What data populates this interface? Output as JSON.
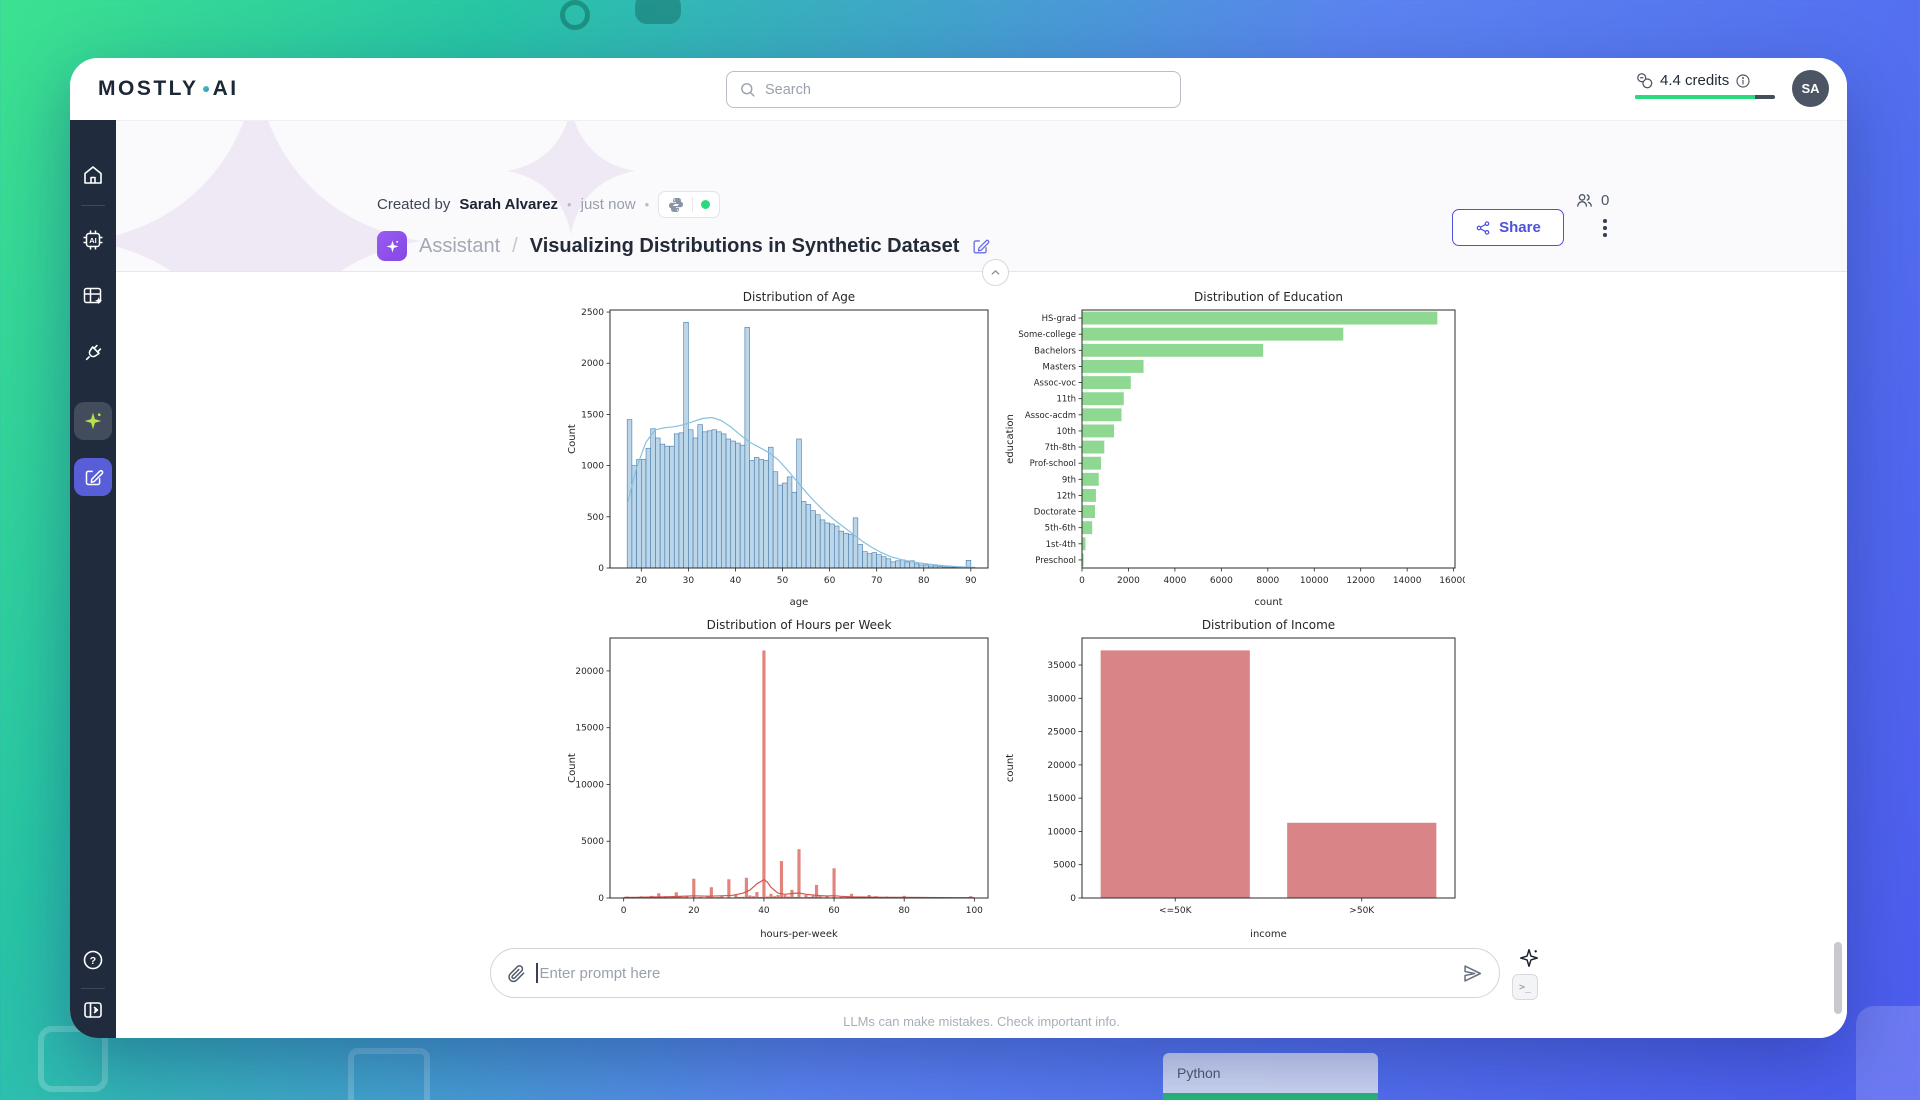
{
  "header": {
    "logo_part1": "MOSTLY",
    "logo_part2": "AI",
    "search": {
      "placeholder": "Search"
    },
    "credits": {
      "label": "4.4 credits",
      "bar_color": "#2bd97f"
    },
    "avatar": {
      "initials": "SA"
    }
  },
  "sidebar": {
    "icons": [
      "home-icon",
      "ai-models-icon",
      "datasets-icon",
      "connectors-icon",
      "assistant-sparkle-icon",
      "new-chat-icon",
      "help-icon",
      "collapse-sidebar-icon"
    ],
    "active_icon_color": "#b8e24a",
    "newchat_bg": "#585ed8"
  },
  "meta": {
    "created_by_label": "Created by",
    "author": "Sarah Alvarez",
    "dot": "•",
    "time": "just now",
    "language_badge": {
      "icon": "python-icon",
      "status_color": "#2bd97f"
    },
    "viewers_count": "0"
  },
  "title_row": {
    "breadcrumb": "Assistant",
    "separator": "/",
    "title": "Visualizing Distributions in Synthetic Dataset",
    "share_label": "Share"
  },
  "prompt": {
    "placeholder": "Enter prompt here",
    "disclaimer": "LLMs can make mistakes. Check important info."
  },
  "background": {
    "python_chip_label": "Python"
  },
  "chart_data": [
    {
      "type": "histogram",
      "title": "Distribution of Age",
      "xlabel": "age",
      "ylabel": "Count",
      "xlim": [
        13.35,
        93.65
      ],
      "ylim": [
        0,
        2520
      ],
      "xticks": [
        20,
        30,
        40,
        50,
        60,
        70,
        80,
        90
      ],
      "yticks": [
        0,
        500,
        1000,
        1500,
        2000,
        2500
      ],
      "bin_start": 17,
      "bin_width": 1,
      "counts": [
        1450,
        1000,
        1060,
        1060,
        1170,
        1360,
        1270,
        1210,
        1190,
        1190,
        1310,
        1320,
        2400,
        1350,
        1270,
        1400,
        1330,
        1340,
        1350,
        1330,
        1310,
        1260,
        1240,
        1220,
        1200,
        2350,
        1050,
        1080,
        1060,
        1050,
        1180,
        940,
        810,
        830,
        890,
        740,
        1260,
        650,
        620,
        560,
        520,
        470,
        440,
        430,
        410,
        360,
        340,
        330,
        490,
        230,
        160,
        140,
        150,
        130,
        110,
        90,
        60,
        70,
        80,
        60,
        70,
        40,
        30,
        30,
        20,
        20,
        15,
        10,
        10,
        8,
        5,
        5,
        75
      ],
      "kde": [
        [
          17,
          620
        ],
        [
          19,
          980
        ],
        [
          21,
          1230
        ],
        [
          23,
          1350
        ],
        [
          25,
          1370
        ],
        [
          27,
          1380
        ],
        [
          29,
          1400
        ],
        [
          31,
          1430
        ],
        [
          33,
          1460
        ],
        [
          35,
          1470
        ],
        [
          37,
          1440
        ],
        [
          39,
          1380
        ],
        [
          41,
          1300
        ],
        [
          43,
          1230
        ],
        [
          45,
          1180
        ],
        [
          47,
          1130
        ],
        [
          49,
          1060
        ],
        [
          51,
          960
        ],
        [
          53,
          850
        ],
        [
          55,
          740
        ],
        [
          57,
          640
        ],
        [
          59,
          550
        ],
        [
          61,
          470
        ],
        [
          63,
          400
        ],
        [
          65,
          330
        ],
        [
          67,
          260
        ],
        [
          69,
          200
        ],
        [
          71,
          150
        ],
        [
          73,
          110
        ],
        [
          75,
          85
        ],
        [
          77,
          65
        ],
        [
          79,
          50
        ],
        [
          81,
          38
        ],
        [
          83,
          28
        ],
        [
          85,
          20
        ],
        [
          87,
          14
        ],
        [
          89,
          9
        ],
        [
          91,
          5
        ]
      ],
      "bar_color": "#bad6e8",
      "bar_edge": "#4878a8",
      "line_color": "#85c1e0"
    },
    {
      "type": "barh",
      "title": "Distribution of Education",
      "xlabel": "count",
      "ylabel": "education",
      "categories": [
        "HS-grad",
        "Some-college",
        "Bachelors",
        "Masters",
        "Assoc-voc",
        "11th",
        "Assoc-acdm",
        "10th",
        "7th-8th",
        "Prof-school",
        "9th",
        "12th",
        "Doctorate",
        "5th-6th",
        "1st-4th",
        "Preschool"
      ],
      "values": [
        15300,
        11250,
        7800,
        2650,
        2100,
        1800,
        1700,
        1380,
        960,
        820,
        720,
        600,
        560,
        440,
        150,
        70
      ],
      "xlim": [
        0,
        16060
      ],
      "xticks": [
        0,
        2000,
        4000,
        6000,
        8000,
        10000,
        12000,
        14000,
        16000
      ],
      "bar_color": "#8fd892"
    },
    {
      "type": "histogram",
      "title": "Distribution of Hours per Week",
      "xlabel": "hours-per-week",
      "ylabel": "Count",
      "xlim": [
        -3.9,
        103.9
      ],
      "ylim": [
        0,
        22900
      ],
      "xticks": [
        0,
        20,
        40,
        60,
        80,
        100
      ],
      "yticks": [
        0,
        5000,
        10000,
        15000,
        20000
      ],
      "bar_width": 0.9,
      "bars": [
        [
          1,
          130
        ],
        [
          2,
          70
        ],
        [
          3,
          60
        ],
        [
          4,
          70
        ],
        [
          5,
          150
        ],
        [
          6,
          80
        ],
        [
          7,
          60
        ],
        [
          8,
          190
        ],
        [
          9,
          50
        ],
        [
          10,
          420
        ],
        [
          12,
          160
        ],
        [
          13,
          70
        ],
        [
          14,
          90
        ],
        [
          15,
          500
        ],
        [
          16,
          140
        ],
        [
          17,
          70
        ],
        [
          18,
          130
        ],
        [
          19,
          40
        ],
        [
          20,
          1700
        ],
        [
          21,
          60
        ],
        [
          22,
          90
        ],
        [
          24,
          200
        ],
        [
          25,
          950
        ],
        [
          26,
          70
        ],
        [
          27,
          80
        ],
        [
          28,
          140
        ],
        [
          29,
          40
        ],
        [
          30,
          1650
        ],
        [
          32,
          320
        ],
        [
          33,
          90
        ],
        [
          34,
          110
        ],
        [
          35,
          1780
        ],
        [
          36,
          230
        ],
        [
          37,
          160
        ],
        [
          38,
          520
        ],
        [
          39,
          90
        ],
        [
          40,
          21800
        ],
        [
          41,
          130
        ],
        [
          42,
          370
        ],
        [
          43,
          160
        ],
        [
          44,
          260
        ],
        [
          45,
          3250
        ],
        [
          46,
          260
        ],
        [
          47,
          130
        ],
        [
          48,
          720
        ],
        [
          49,
          90
        ],
        [
          50,
          4300
        ],
        [
          51,
          70
        ],
        [
          52,
          260
        ],
        [
          53,
          90
        ],
        [
          54,
          190
        ],
        [
          55,
          1150
        ],
        [
          56,
          160
        ],
        [
          57,
          50
        ],
        [
          58,
          130
        ],
        [
          60,
          2620
        ],
        [
          62,
          90
        ],
        [
          63,
          70
        ],
        [
          64,
          90
        ],
        [
          65,
          370
        ],
        [
          66,
          70
        ],
        [
          68,
          90
        ],
        [
          70,
          270
        ],
        [
          72,
          160
        ],
        [
          75,
          130
        ],
        [
          77,
          70
        ],
        [
          80,
          190
        ],
        [
          84,
          90
        ],
        [
          85,
          70
        ],
        [
          88,
          50
        ],
        [
          90,
          90
        ],
        [
          95,
          50
        ],
        [
          98,
          70
        ],
        [
          99,
          160
        ]
      ],
      "kde": [
        [
          0,
          40
        ],
        [
          4,
          60
        ],
        [
          8,
          90
        ],
        [
          12,
          110
        ],
        [
          16,
          140
        ],
        [
          20,
          190
        ],
        [
          24,
          160
        ],
        [
          28,
          190
        ],
        [
          31,
          240
        ],
        [
          34,
          420
        ],
        [
          36,
          700
        ],
        [
          38,
          1250
        ],
        [
          40,
          1620
        ],
        [
          41,
          1400
        ],
        [
          42,
          950
        ],
        [
          44,
          420
        ],
        [
          46,
          330
        ],
        [
          48,
          400
        ],
        [
          50,
          440
        ],
        [
          52,
          330
        ],
        [
          54,
          260
        ],
        [
          56,
          210
        ],
        [
          58,
          180
        ],
        [
          60,
          200
        ],
        [
          62,
          150
        ],
        [
          65,
          110
        ],
        [
          70,
          80
        ],
        [
          75,
          60
        ],
        [
          80,
          50
        ],
        [
          85,
          40
        ],
        [
          90,
          35
        ],
        [
          95,
          30
        ],
        [
          100,
          25
        ]
      ],
      "bar_color": "#e2837c",
      "line_color": "#d5554e"
    },
    {
      "type": "bar",
      "title": "Distribution of Income",
      "xlabel": "income",
      "ylabel": "count",
      "categories": [
        "<=50K",
        ">50K"
      ],
      "values": [
        37200,
        11300
      ],
      "ylim": [
        0,
        39060
      ],
      "yticks": [
        0,
        5000,
        10000,
        15000,
        20000,
        25000,
        30000,
        35000
      ],
      "bar_color": "#d98486"
    }
  ]
}
